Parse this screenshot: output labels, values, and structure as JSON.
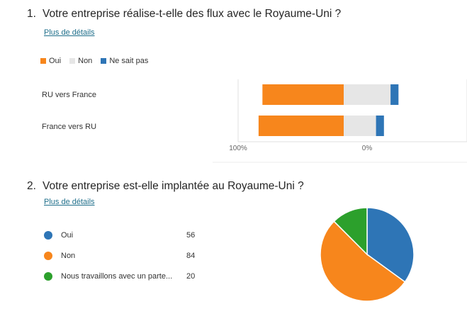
{
  "question1": {
    "number": "1.",
    "title": "Votre entreprise réalise-t-elle des flux avec le Royaume-Uni ?",
    "details_link": "Plus de détails"
  },
  "question2": {
    "number": "2.",
    "title": "Votre entreprise est-elle implantée au Royaume-Uni ?",
    "details_link": "Plus de détails"
  },
  "chart_data": [
    {
      "type": "bar",
      "orientation": "horizontal-stacked-diverging",
      "categories": [
        "RU vers France",
        "France vers RU"
      ],
      "series": [
        {
          "name": "Oui",
          "values": [
            63,
            66
          ]
        },
        {
          "name": "Non",
          "values": [
            29,
            20
          ]
        },
        {
          "name": "Ne sait pas",
          "values": [
            8,
            8
          ]
        }
      ],
      "tick_labels": [
        "100%",
        "0%"
      ],
      "legend_position": "top-left",
      "colors": {
        "Oui": "#f7861c",
        "Non": "#e6e6e6",
        "Ne sait pas": "#2e75b6"
      }
    },
    {
      "type": "pie",
      "labels": [
        "Oui",
        "Non",
        "Nous travaillons avec un parte..."
      ],
      "values": [
        56,
        84,
        20
      ],
      "legend_position": "left",
      "colors": {
        "Oui": "#2e75b6",
        "Non": "#f7861c",
        "Nous travaillons avec un parte...": "#2ca02c"
      }
    }
  ]
}
